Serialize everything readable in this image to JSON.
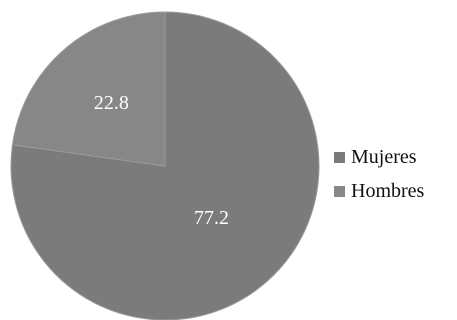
{
  "chart_data": {
    "type": "pie",
    "slices": [
      {
        "label": "Mujeres",
        "value": 77.2,
        "color": "#7b7b7b"
      },
      {
        "label": "Hombres",
        "value": 22.8,
        "color": "#878787"
      }
    ],
    "data_labels": [
      "77.2",
      "22.8"
    ],
    "legend_position": "right",
    "label_color": "#ffffff",
    "stroke_color": "#9a9a9a"
  }
}
